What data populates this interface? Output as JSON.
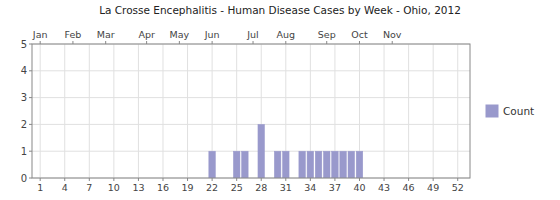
{
  "chart_data": {
    "type": "bar",
    "title": "La Crosse Encephalitis - Human Disease Cases by Week - Ohio, 2012",
    "x": [
      1,
      2,
      3,
      4,
      5,
      6,
      7,
      8,
      9,
      10,
      11,
      12,
      13,
      14,
      15,
      16,
      17,
      18,
      19,
      20,
      21,
      22,
      23,
      24,
      25,
      26,
      27,
      28,
      29,
      30,
      31,
      32,
      33,
      34,
      35,
      36,
      37,
      38,
      39,
      40,
      41,
      42,
      43,
      44,
      45,
      46,
      47,
      48,
      49,
      50,
      51,
      52
    ],
    "series": [
      {
        "name": "Count",
        "color": "#9999cc",
        "values": [
          0,
          0,
          0,
          0,
          0,
          0,
          0,
          0,
          0,
          0,
          0,
          0,
          0,
          0,
          0,
          0,
          0,
          0,
          0,
          0,
          0,
          1,
          0,
          0,
          1,
          1,
          0,
          2,
          0,
          1,
          1,
          0,
          1,
          1,
          1,
          1,
          1,
          1,
          1,
          1,
          0,
          0,
          0,
          0,
          0,
          0,
          0,
          0,
          0,
          0,
          0,
          0
        ]
      }
    ],
    "xlim": [
      0.0,
      53.5
    ],
    "xticks": [
      1,
      4,
      7,
      10,
      13,
      16,
      19,
      22,
      25,
      28,
      31,
      34,
      37,
      40,
      43,
      46,
      49,
      52
    ],
    "x2ticks": [
      {
        "value": 1,
        "label": "Jan"
      },
      {
        "value": 5,
        "label": "Feb"
      },
      {
        "value": 9,
        "label": "Mar"
      },
      {
        "value": 14,
        "label": "Apr"
      },
      {
        "value": 18,
        "label": "May"
      },
      {
        "value": 22,
        "label": "Jun"
      },
      {
        "value": 27,
        "label": "Jul"
      },
      {
        "value": 31,
        "label": "Aug"
      },
      {
        "value": 36,
        "label": "Sep"
      },
      {
        "value": 40,
        "label": "Oct"
      },
      {
        "value": 44,
        "label": "Nov"
      }
    ],
    "ylim": [
      0,
      5
    ],
    "yticks": [
      0,
      1,
      2,
      3,
      4,
      5
    ],
    "grid": true,
    "legend": "right"
  }
}
